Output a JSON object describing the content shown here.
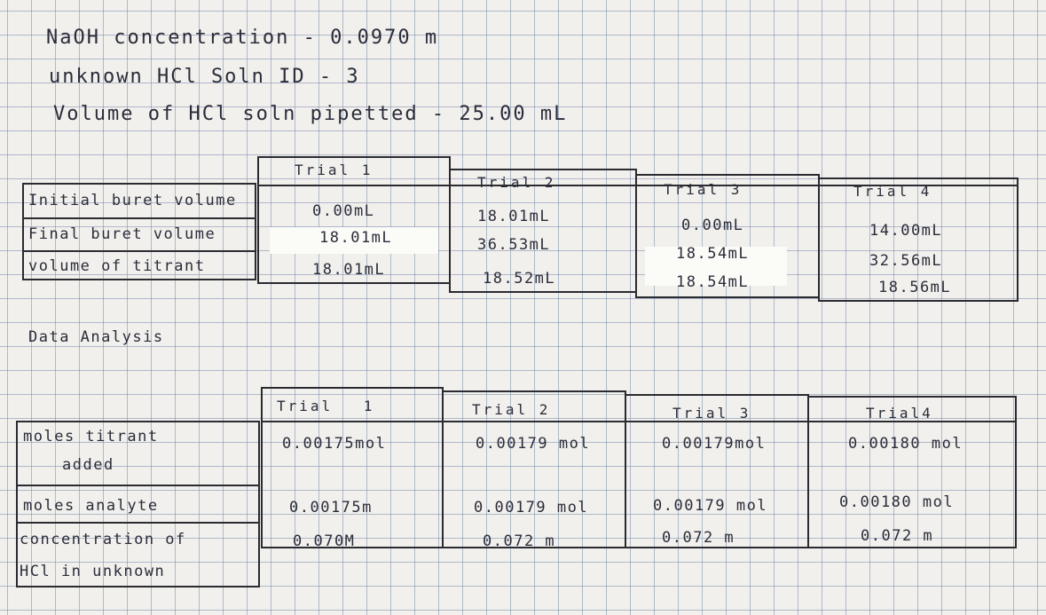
{
  "header": {
    "line1": "NaOH concentration - 0.0970 m",
    "line2": "unknown HCl Soln ID - 3",
    "line3": "Volume of HCl soln pipetted - 25.00 mL"
  },
  "table1": {
    "trials": [
      "Trial 1",
      "Trial 2",
      "Trial 3",
      "Trial 4"
    ],
    "row_labels": [
      "Initial buret volume",
      "Final buret volume",
      "volume of titrant"
    ],
    "values": {
      "t1": [
        "0.00mL",
        "18.01mL",
        "18.01mL"
      ],
      "t2": [
        "18.01mL",
        "36.53mL",
        "18.52mL"
      ],
      "t3": [
        "0.00mL",
        "18.54mL",
        "18.54mL"
      ],
      "t4": [
        "14.00mL",
        "32.56mL",
        "18.56mL"
      ]
    }
  },
  "analysis_heading": "Data Analysis",
  "table2": {
    "trials": [
      "Trial 1",
      "Trial 2",
      "Trial 3",
      "Trial4"
    ],
    "row_labels": {
      "moles_titrant_1": "moles titrant",
      "moles_titrant_2": "added",
      "moles_analyte": "moles analyte",
      "concentration_1": "concentration of",
      "concentration_2": "HCl in unknown"
    },
    "moles_titrant": [
      "0.00175mol",
      "0.00179 mol",
      "0.00179mol",
      "0.00180 mol"
    ],
    "moles_analyte": [
      "0.00175m",
      "0.00179 mol",
      "0.00179 mol",
      "0.00180 mol"
    ],
    "concentration": [
      "0.070M",
      "0.072 m",
      "0.072 m",
      "0.072 m"
    ]
  }
}
